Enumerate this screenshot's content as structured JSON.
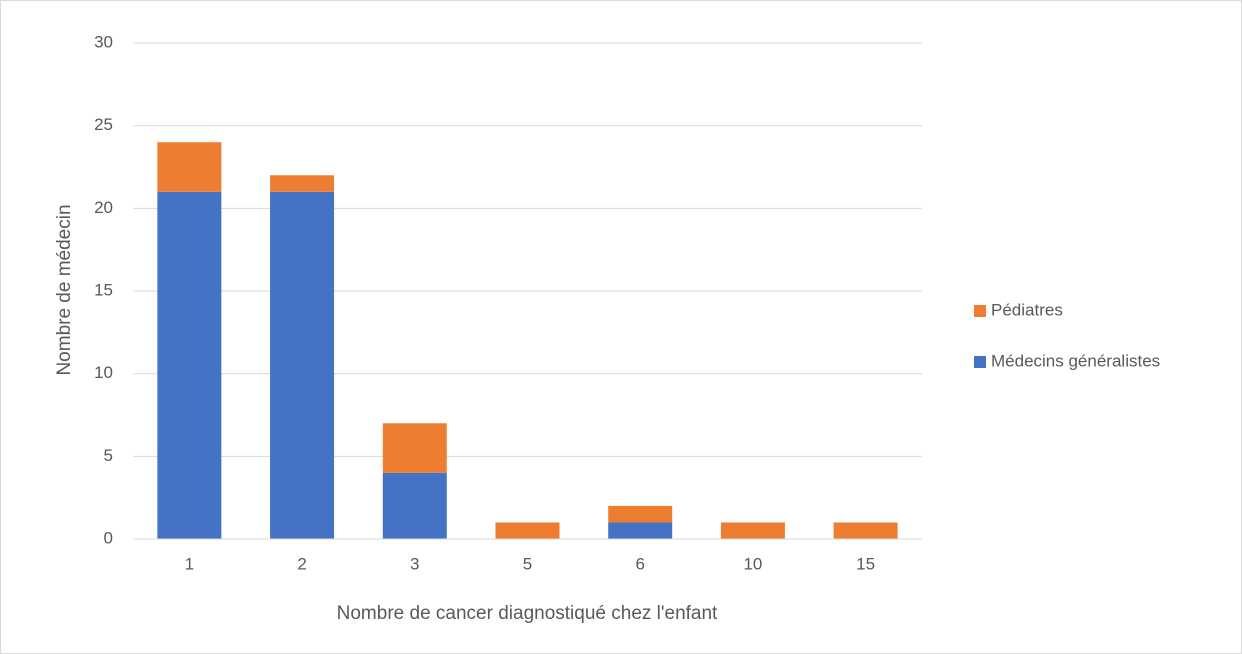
{
  "chart_data": {
    "type": "stacked_bar",
    "x_label": "Nombre de cancer diagnostiqué chez l'enfant",
    "y_label": "Nombre de médecin",
    "categories": [
      "1",
      "2",
      "3",
      "5",
      "6",
      "10",
      "15"
    ],
    "series": [
      {
        "name": "Médecins généralistes",
        "color": "#4472c4",
        "values": [
          21,
          21,
          4,
          0,
          1,
          0,
          0
        ]
      },
      {
        "name": "Pédiatres",
        "color": "#ed7d31",
        "values": [
          3,
          1,
          3,
          1,
          1,
          1,
          1
        ]
      }
    ],
    "ylim": [
      0,
      30
    ],
    "yticks": [
      0,
      5,
      10,
      15,
      20,
      25,
      30
    ],
    "grid": true,
    "legend": "right"
  }
}
